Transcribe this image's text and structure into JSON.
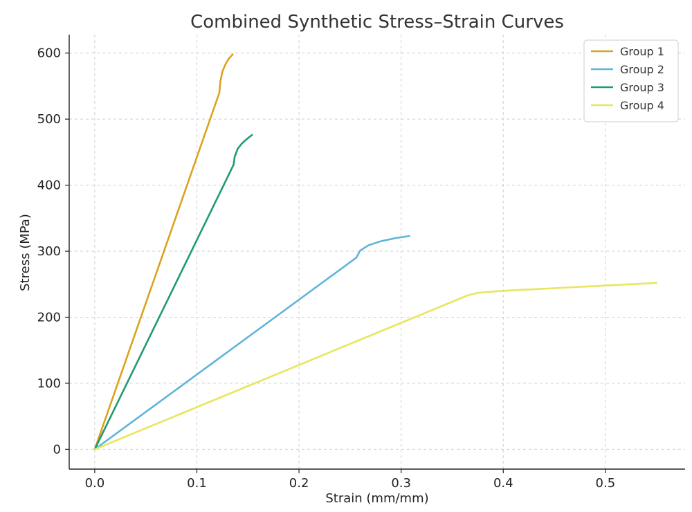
{
  "chart_data": {
    "type": "line",
    "title": "Combined Synthetic Stress–Strain Curves",
    "xlabel": "Strain (mm/mm)",
    "ylabel": "Stress (MPa)",
    "xlim": [
      -0.025,
      0.578
    ],
    "ylim": [
      -30,
      628
    ],
    "xticks": [
      0.0,
      0.1,
      0.2,
      0.3,
      0.4,
      0.5
    ],
    "xtick_labels": [
      "0.0",
      "0.1",
      "0.2",
      "0.3",
      "0.4",
      "0.5"
    ],
    "yticks": [
      0,
      100,
      200,
      300,
      400,
      500,
      600
    ],
    "ytick_labels": [
      "0",
      "100",
      "200",
      "300",
      "400",
      "500",
      "600"
    ],
    "grid": true,
    "legend_position": "top-right",
    "series": [
      {
        "name": "Group 1",
        "color": "#DBA21E",
        "x": [
          0.0,
          0.122,
          0.123,
          0.125,
          0.128,
          0.131,
          0.135
        ],
        "y": [
          0,
          540,
          557,
          572,
          583,
          591,
          598
        ]
      },
      {
        "name": "Group 2",
        "color": "#5FB4D9",
        "x": [
          0.0,
          0.256,
          0.26,
          0.268,
          0.28,
          0.295,
          0.308
        ],
        "y": [
          0,
          290,
          301,
          309,
          315,
          320,
          323
        ]
      },
      {
        "name": "Group 3",
        "color": "#1F9A72",
        "x": [
          0.0,
          0.136,
          0.137,
          0.14,
          0.144,
          0.149,
          0.154
        ],
        "y": [
          0,
          431,
          443,
          455,
          463,
          470,
          476
        ]
      },
      {
        "name": "Group 4",
        "color": "#E8E65C",
        "x": [
          0.0,
          0.365,
          0.375,
          0.4,
          0.45,
          0.5,
          0.55
        ],
        "y": [
          0,
          233,
          237,
          240,
          244,
          248,
          252
        ]
      }
    ]
  }
}
